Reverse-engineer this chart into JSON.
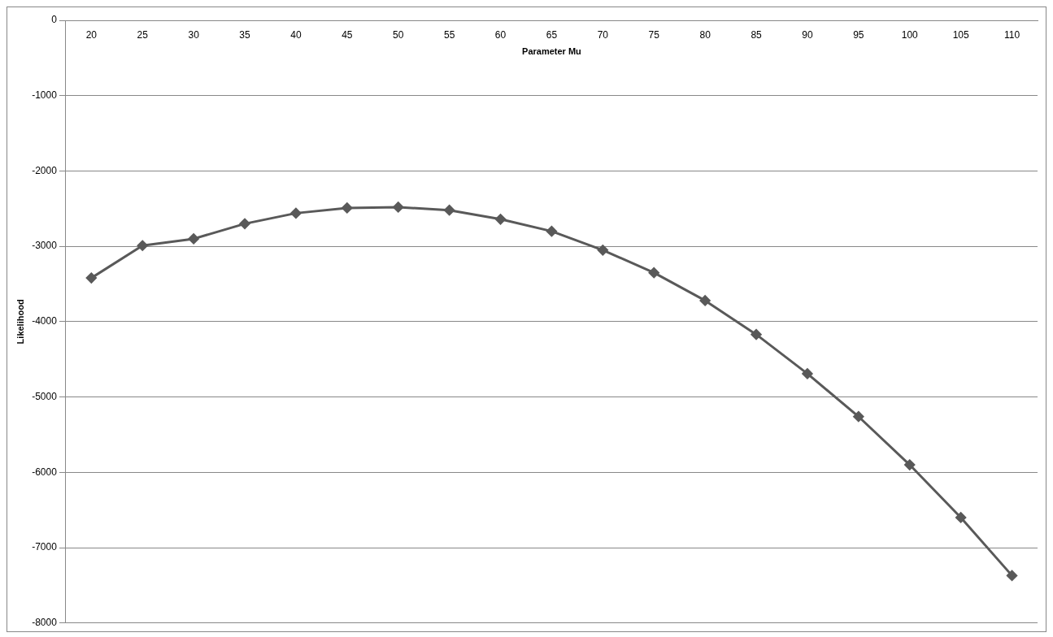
{
  "chart_data": {
    "type": "line",
    "xlabel": "Parameter Mu",
    "ylabel": "Likelihood",
    "categories": [
      "20",
      "25",
      "30",
      "35",
      "40",
      "45",
      "50",
      "55",
      "60",
      "65",
      "70",
      "75",
      "80",
      "85",
      "90",
      "95",
      "100",
      "105",
      "110"
    ],
    "series": [
      {
        "color": "#595959",
        "values": [
          -3420,
          -2990,
          -2900,
          -2700,
          -2560,
          -2490,
          -2480,
          -2520,
          -2640,
          -2800,
          -3050,
          -3350,
          -3720,
          -4170,
          -4690,
          -5260,
          -5900,
          -6600,
          -7370
        ]
      }
    ],
    "ylim": [
      -8000,
      0
    ],
    "yticks": [
      -8000,
      -7000,
      -6000,
      -5000,
      -4000,
      -3000,
      -2000,
      -1000,
      0
    ],
    "grid": "y",
    "legend": false,
    "marker": "diamond",
    "line_style": "solid"
  }
}
